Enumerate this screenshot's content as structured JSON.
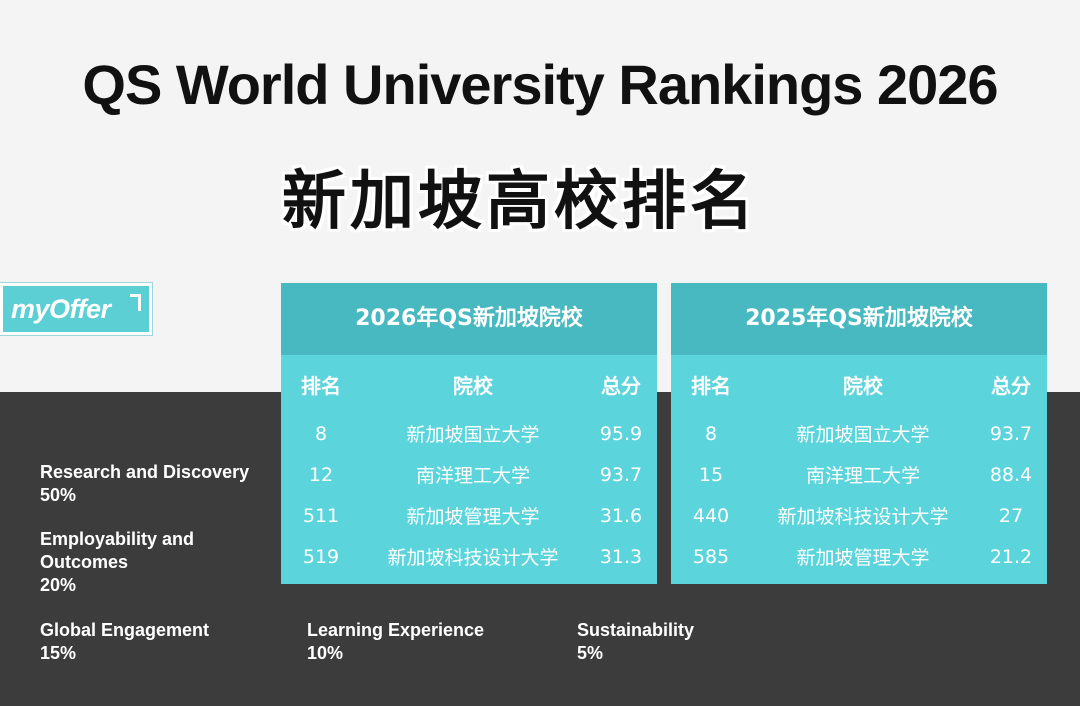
{
  "title": "QS World University Rankings 2026",
  "subtitle": "新加坡高校排名",
  "logo": {
    "text": "myOffer"
  },
  "tables": [
    {
      "header": "2026年QS新加坡院校",
      "columns": [
        "排名",
        "院校",
        "总分"
      ],
      "rows": [
        [
          "8",
          "新加坡国立大学",
          "95.9"
        ],
        [
          "12",
          "南洋理工大学",
          "93.7"
        ],
        [
          "511",
          "新加坡管理大学",
          "31.6"
        ],
        [
          "519",
          "新加坡科技设计大学",
          "31.3"
        ]
      ]
    },
    {
      "header": "2025年QS新加坡院校",
      "columns": [
        "排名",
        "院校",
        "总分"
      ],
      "rows": [
        [
          "8",
          "新加坡国立大学",
          "93.7"
        ],
        [
          "15",
          "南洋理工大学",
          "88.4"
        ],
        [
          "440",
          "新加坡科技设计大学",
          "27"
        ],
        [
          "585",
          "新加坡管理大学",
          "21.2"
        ]
      ]
    }
  ],
  "criteria": [
    {
      "name": "Research and Discovery",
      "weight": "50%"
    },
    {
      "name": "Employability and\nOutcomes",
      "weight": "20%"
    },
    {
      "name": "Global Engagement",
      "weight": "15%"
    },
    {
      "name": "Learning Experience",
      "weight": "10%"
    },
    {
      "name": "Sustainability",
      "weight": "5%"
    }
  ],
  "colors": {
    "table_bg": "#5cd4dc",
    "table_header": "#49b9c1",
    "dark_band": "#3c3c3c"
  }
}
